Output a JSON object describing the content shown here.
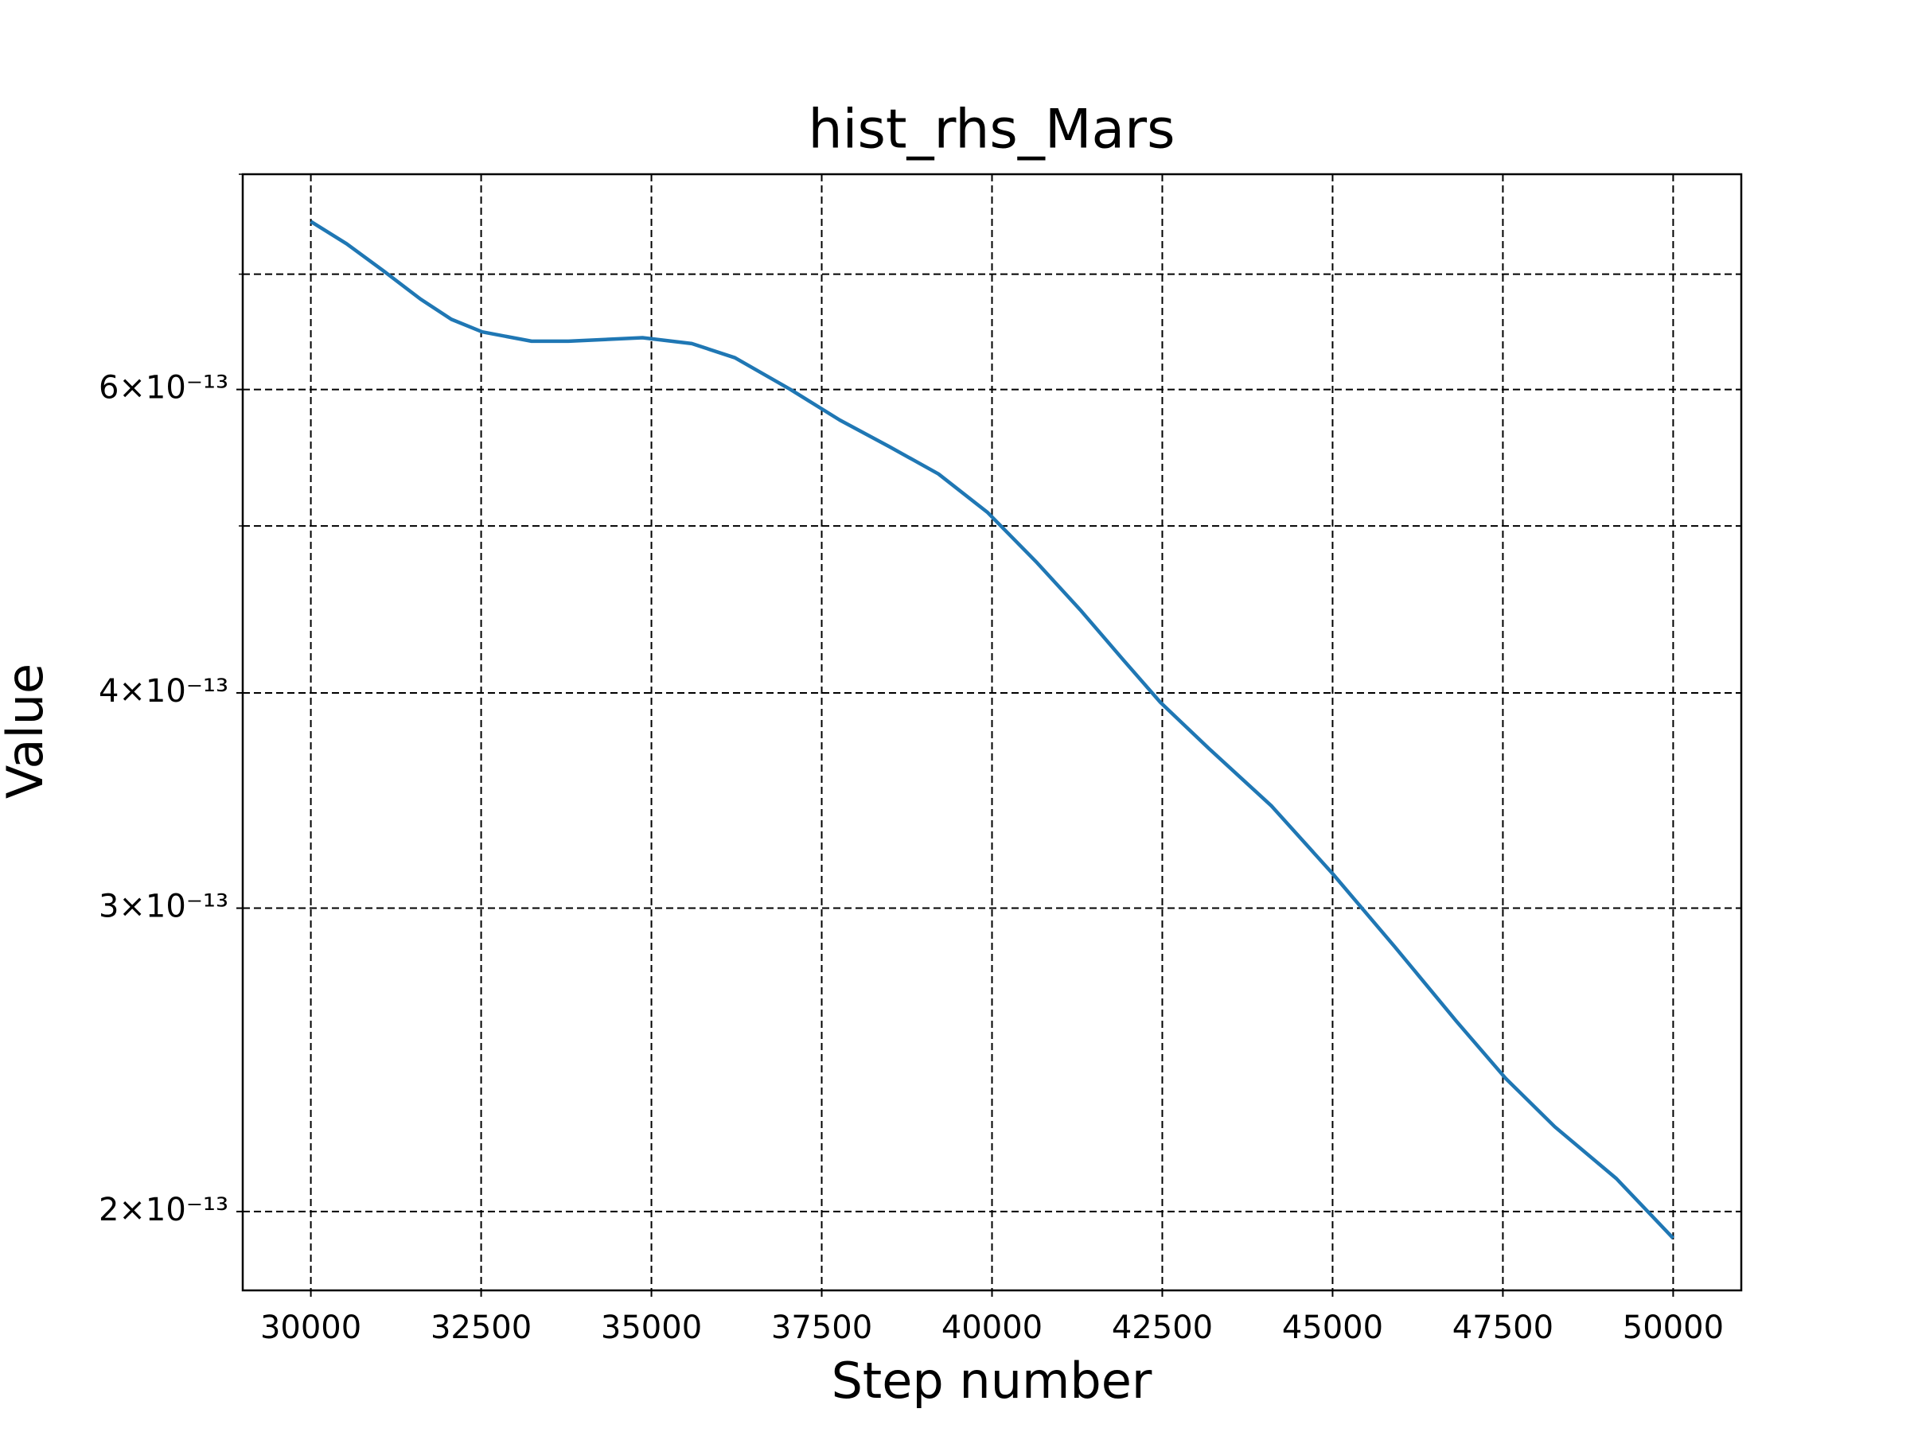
{
  "chart_data": {
    "type": "line",
    "title": "hist_rhs_Mars",
    "x_label": "Step number",
    "y_label": "Value",
    "x": [
      30000,
      30525,
      31068,
      31611,
      32063,
      32516,
      33240,
      33783,
      34869,
      35593,
      36226,
      37041,
      37765,
      38489,
      39213,
      39937,
      40661,
      41294,
      41928,
      42471,
      43195,
      44100,
      45005,
      45910,
      46815,
      47539,
      48262,
      49167,
      50000
    ],
    "series": [
      {
        "color": "#1f77b4",
        "values": [
          7.51e-13,
          7.29e-13,
          7.03e-13,
          6.77e-13,
          6.59e-13,
          6.48e-13,
          6.4e-13,
          6.4e-13,
          6.43e-13,
          6.38e-13,
          6.26e-13,
          6e-13,
          5.76e-13,
          5.56e-13,
          5.36e-13,
          5.09e-13,
          4.76e-13,
          4.47e-13,
          4.18e-13,
          3.95e-13,
          3.71e-13,
          3.44e-13,
          3.14e-13,
          2.85e-13,
          2.58e-13,
          2.39e-13,
          2.24e-13,
          2.09e-13,
          1.93e-13
        ]
      }
    ],
    "xlim": [
      29000,
      51000
    ],
    "xticks": [
      30000,
      32500,
      35000,
      37500,
      40000,
      42500,
      45000,
      47500,
      50000
    ],
    "ylim": [
      1.8e-13,
      8e-13
    ],
    "ylog": true,
    "yticks": [
      {
        "value": 2e-13,
        "label": "2×10⁻¹³"
      },
      {
        "value": 3e-13,
        "label": "3×10⁻¹³"
      },
      {
        "value": 4e-13,
        "label": "4×10⁻¹³"
      },
      {
        "value": 6e-13,
        "label": "6×10⁻¹³"
      }
    ],
    "yticks_minor": [
      5e-13,
      7e-13,
      8e-13
    ],
    "grid": true
  }
}
